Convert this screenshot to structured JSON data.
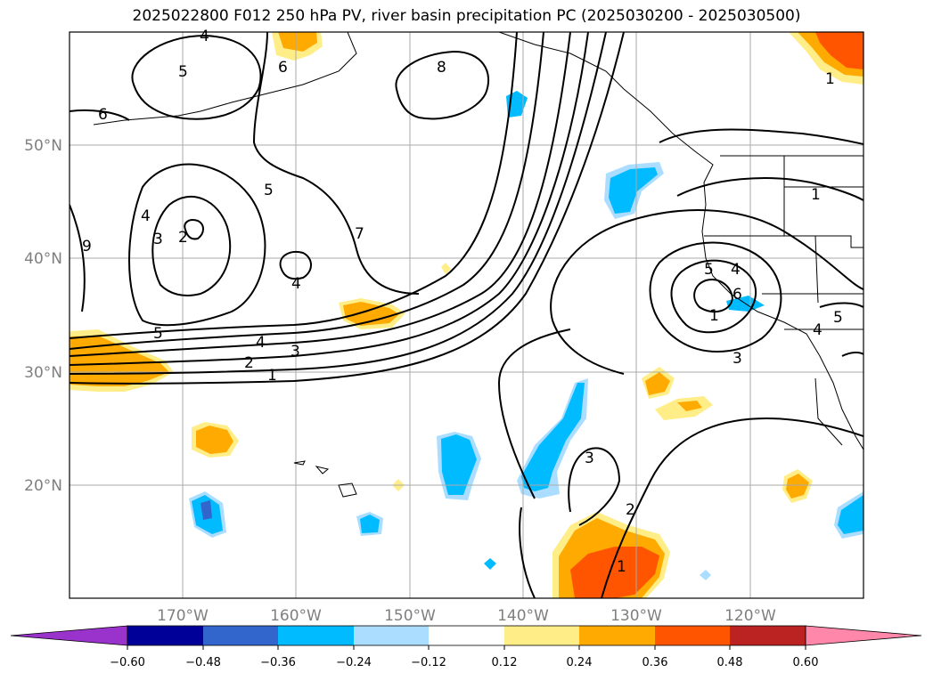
{
  "title": "2025022800 F012 250 hPa PV, river basin precipitation PC (2025030200 - 2025030500)",
  "lat_labels": [
    "50°N",
    "40°N",
    "30°N",
    "20°N"
  ],
  "lon_labels": [
    "170°W",
    "160°W",
    "150°W",
    "140°W",
    "130°W",
    "120°W"
  ],
  "colorbar": {
    "colors": [
      "#9933cc",
      "#000099",
      "#3366cc",
      "#00bbff",
      "#aaddff",
      "#ffffff",
      "#ffee88",
      "#ffaa00",
      "#ff5500",
      "#bb2222",
      "#ff88aa"
    ],
    "ticks": [
      "−0.60",
      "−0.48",
      "−0.36",
      "−0.24",
      "−0.12",
      "0.12",
      "0.24",
      "0.36",
      "0.48",
      "0.60"
    ]
  },
  "contour_labels": [
    "4",
    "5",
    "6",
    "6",
    "8",
    "4",
    "3",
    "2",
    "5",
    "9",
    "7",
    "4",
    "5",
    "4",
    "3",
    "2",
    "1",
    "1",
    "5",
    "4",
    "6",
    "1",
    "3",
    "1",
    "5",
    "4",
    "3",
    "2",
    "1"
  ]
}
